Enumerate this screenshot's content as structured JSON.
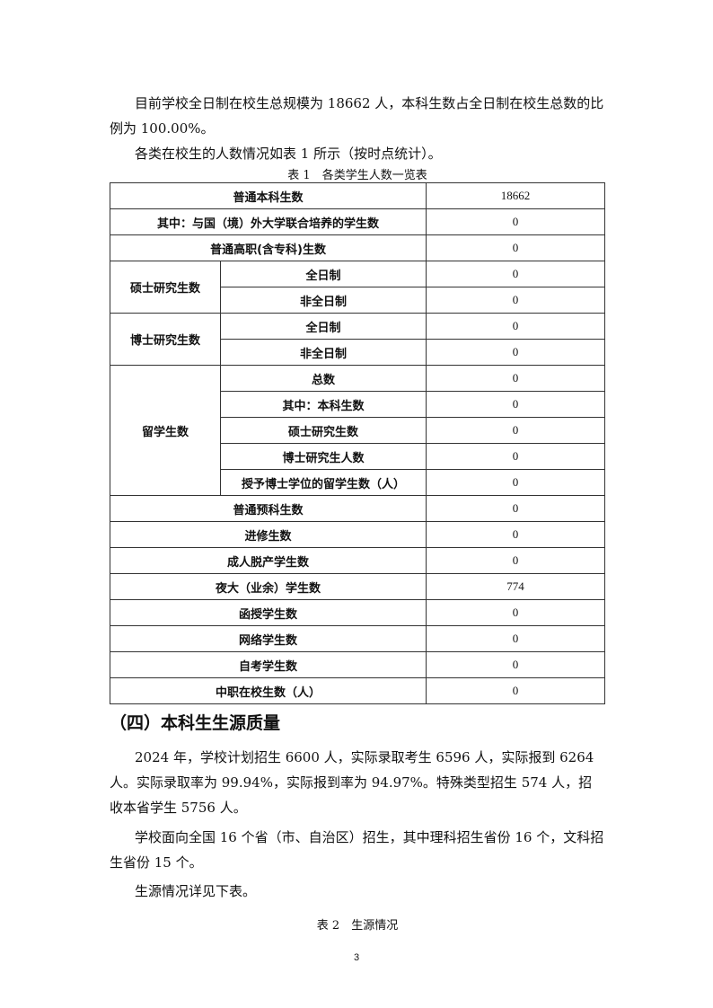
{
  "intro": {
    "p1": "目前学校全日制在校生总规模为 18662 人，本科生数占全日制在校生总数的比例为 100.00%。",
    "p2": "各类在校生的人数情况如表 1 所示（按时点统计）。"
  },
  "table1": {
    "caption": "表 1　各类学生人数一览表",
    "rows": [
      {
        "label": "普通本科生数",
        "value": "18662"
      },
      {
        "label": "其中：与国（境）外大学联合培养的学生数",
        "value": "0"
      },
      {
        "label": "普通高职(含专科)生数",
        "value": "0"
      },
      {
        "group": "硕士研究生数",
        "items": [
          {
            "label": "全日制",
            "value": "0"
          },
          {
            "label": "非全日制",
            "value": "0"
          }
        ]
      },
      {
        "group": "博士研究生数",
        "items": [
          {
            "label": "全日制",
            "value": "0"
          },
          {
            "label": "非全日制",
            "value": "0"
          }
        ]
      },
      {
        "group": "留学生数",
        "items": [
          {
            "label": "总数",
            "value": "0"
          },
          {
            "label": "其中：本科生数",
            "value": "0"
          },
          {
            "label": "硕士研究生数",
            "value": "0"
          },
          {
            "label": "博士研究生人数",
            "value": "0"
          },
          {
            "label": "授予博士学位的留学生数（人）",
            "value": "0"
          }
        ]
      },
      {
        "label": "普通预科生数",
        "value": "0"
      },
      {
        "label": "进修生数",
        "value": "0"
      },
      {
        "label": "成人脱产学生数",
        "value": "0"
      },
      {
        "label": "夜大（业余）学生数",
        "value": "774"
      },
      {
        "label": "函授学生数",
        "value": "0"
      },
      {
        "label": "网络学生数",
        "value": "0"
      },
      {
        "label": "自考学生数",
        "value": "0"
      },
      {
        "label": "中职在校生数（人）",
        "value": "0"
      }
    ]
  },
  "section4": {
    "heading": "（四）本科生生源质量",
    "p1": "2024 年，学校计划招生 6600 人，实际录取考生 6596 人，实际报到 6264 人。实际录取率为 99.94%，实际报到率为 94.97%。特殊类型招生 574 人，招收本省学生 5756 人。",
    "p2": "学校面向全国 16 个省（市、自治区）招生，其中理科招生省份 16 个，文科招生省份 15 个。",
    "p3": "生源情况详见下表。",
    "table2_caption": "表 2　生源情况"
  },
  "page_number": "3"
}
